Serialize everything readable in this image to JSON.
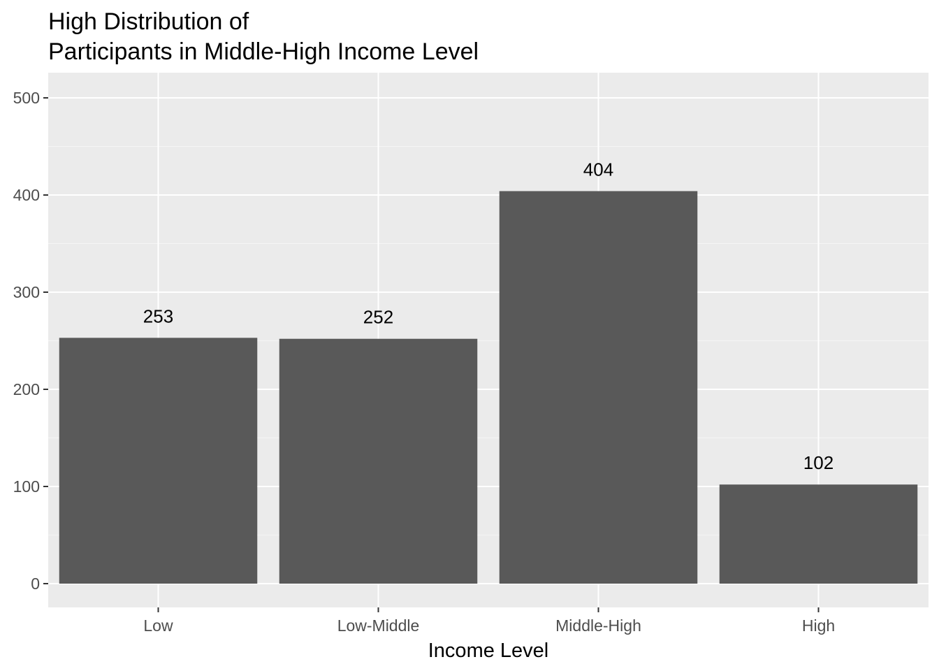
{
  "chart_data": {
    "type": "bar",
    "title_lines": [
      "High Distribution of",
      "Participants in Middle-High Income Level"
    ],
    "xlabel": "Income Level",
    "ylabel": "",
    "categories": [
      "Low",
      "Low-Middle",
      "Middle-High",
      "High"
    ],
    "values": [
      253,
      252,
      404,
      102
    ],
    "data_labels": [
      "253",
      "252",
      "404",
      "102"
    ],
    "ylim": [
      0,
      525
    ],
    "yticks": [
      0,
      100,
      200,
      300,
      400,
      500
    ],
    "ytick_labels": [
      "0",
      "100",
      "200",
      "300",
      "400",
      "500"
    ],
    "grid": true,
    "legend": "none",
    "colors": {
      "bar": "#595959",
      "panel": "#ebebeb",
      "grid_major": "#ffffff",
      "grid_minor": "#f5f5f5",
      "tick": "#333333"
    }
  }
}
